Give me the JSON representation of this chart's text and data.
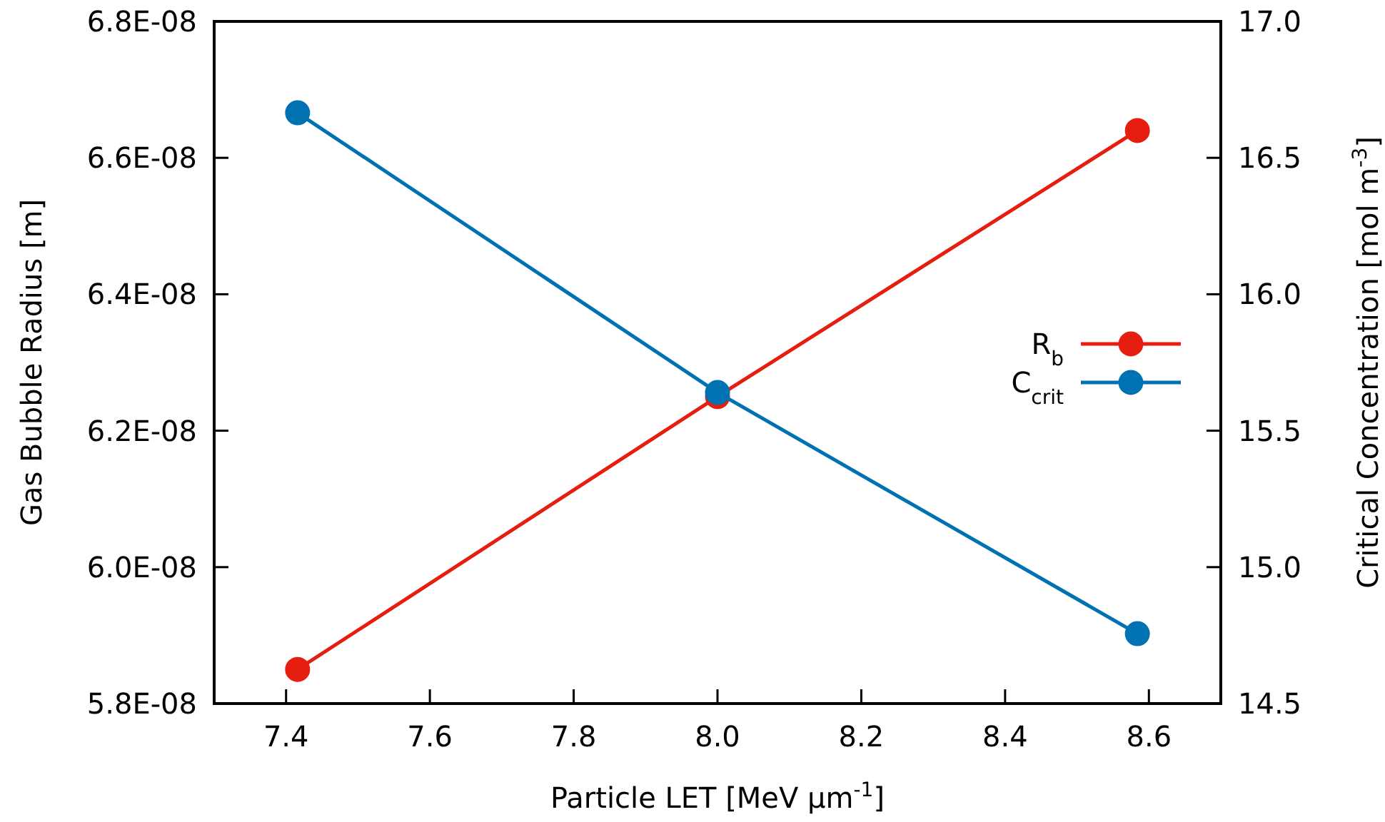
{
  "chart_data": {
    "type": "line",
    "xlabel": "Particle LET [MeV µm$^{-1}$]",
    "ylabel": "Gas Bubble Radius [m]",
    "y2label": "Critical Concentration [mol m$^{-3}$]",
    "x": [
      7.416,
      8.0,
      8.584
    ],
    "xlim": [
      7.3,
      8.7
    ],
    "xticks": [
      {
        "value": 7.4,
        "label": "7.4"
      },
      {
        "value": 7.6,
        "label": "7.6"
      },
      {
        "value": 7.8,
        "label": "7.8"
      },
      {
        "value": 8.0,
        "label": "8.0"
      },
      {
        "value": 8.2,
        "label": "8.2"
      },
      {
        "value": 8.4,
        "label": "8.4"
      },
      {
        "value": 8.6,
        "label": "8.6"
      }
    ],
    "ylim": [
      5.8e-08,
      6.8e-08
    ],
    "yticks": [
      {
        "value": 5.8e-08,
        "label": "5.8E-08"
      },
      {
        "value": 6e-08,
        "label": "6.0E-08"
      },
      {
        "value": 6.2e-08,
        "label": "6.2E-08"
      },
      {
        "value": 6.4e-08,
        "label": "6.4E-08"
      },
      {
        "value": 6.6e-08,
        "label": "6.6E-08"
      },
      {
        "value": 6.8e-08,
        "label": "6.8E-08"
      }
    ],
    "y2lim": [
      14.5,
      17.0
    ],
    "y2ticks": [
      {
        "value": 14.5,
        "label": "14.5"
      },
      {
        "value": 15.0,
        "label": "15.0"
      },
      {
        "value": 15.5,
        "label": "15.5"
      },
      {
        "value": 16.0,
        "label": "16.0"
      },
      {
        "value": 16.5,
        "label": "16.5"
      },
      {
        "value": 17.0,
        "label": "17.0"
      }
    ],
    "series": [
      {
        "name": "R$_{b}$",
        "color": "#e51e10",
        "values": [
          5.85e-08,
          6.25e-08,
          6.64e-08
        ],
        "marker": "circle"
      },
      {
        "name": "C$_{crit}$",
        "color": "#0072b2",
        "values": [
          16.665,
          15.64,
          14.756
        ],
        "axis": "y2",
        "marker": "circle"
      }
    ],
    "grid": false,
    "legend": "right",
    "line_style": "solid"
  }
}
